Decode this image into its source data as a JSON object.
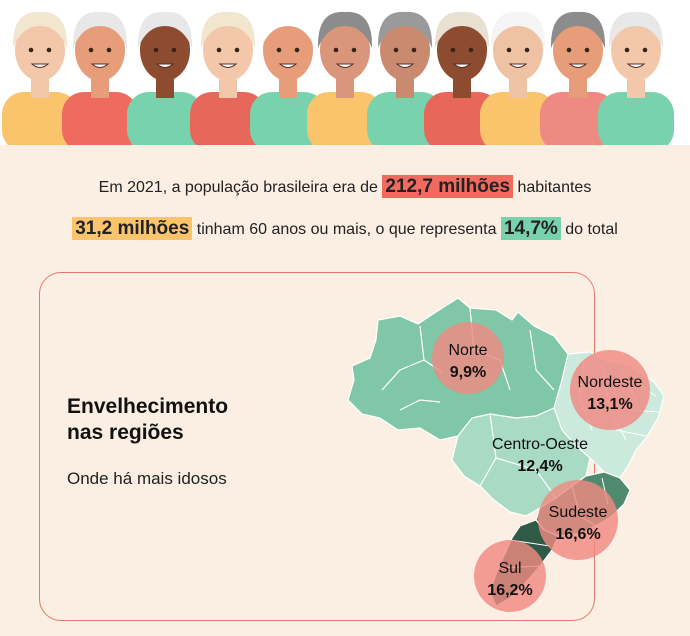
{
  "header": {
    "line1_prefix": "Em 2021, a população brasileira era de",
    "population_total": "212,7 milhões",
    "line1_suffix": "habitantes",
    "elderly_count": "31,2 milhões",
    "line2_middle": "tinham 60 anos ou mais, o que representa",
    "elderly_share": "14,7%",
    "line2_suffix": "do total"
  },
  "regions_section": {
    "title_line1": "Envelhecimento",
    "title_line2": "nas regiões",
    "subtitle": "Onde há mais idosos"
  },
  "regions": [
    {
      "name": "Norte",
      "value": "9,9%"
    },
    {
      "name": "Nordeste",
      "value": "13,1%"
    },
    {
      "name": "Centro-Oeste",
      "value": "12,4%"
    },
    {
      "name": "Sudeste",
      "value": "16,6%"
    },
    {
      "name": "Sul",
      "value": "16,2%"
    }
  ],
  "colors": {
    "background": "#fbeee2",
    "highlight_red": "#ef6b5f",
    "highlight_yellow": "#f9c46b",
    "highlight_green": "#79d2ae",
    "map_norte": "#7fc7a7",
    "map_nordeste": "#cbe9dc",
    "map_centro_oeste": "#a9dbc4",
    "map_sudeste": "#4f8a6f",
    "map_sul": "#2f5a46",
    "bubble": "#ef8a82"
  }
}
